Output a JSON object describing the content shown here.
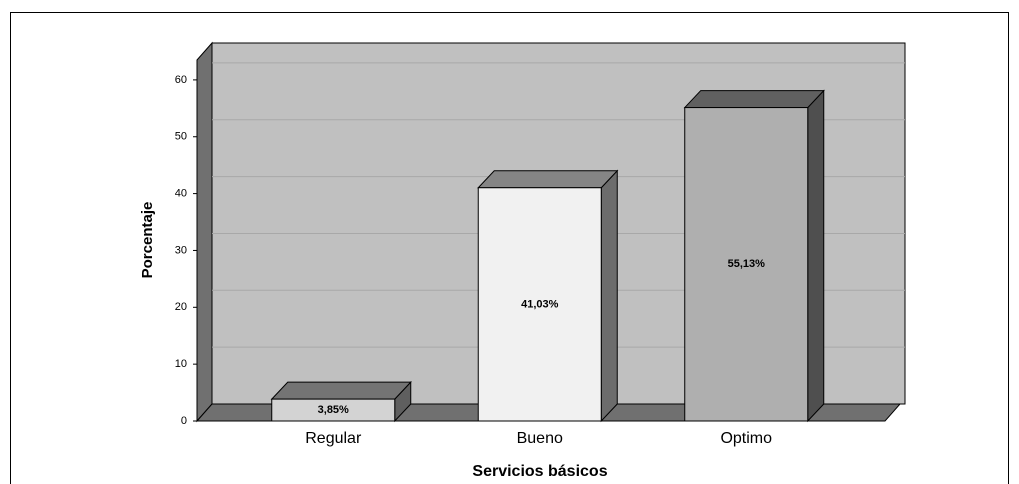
{
  "chart_data": {
    "type": "bar3d",
    "categories": [
      "Regular",
      "Bueno",
      "Optimo"
    ],
    "values": [
      3.85,
      41.03,
      55.13
    ],
    "value_labels": [
      "3,85%",
      "41,03%",
      "55,13%"
    ],
    "colors": [
      "#d3d3d3",
      "#f1f1f1",
      "#afafaf"
    ],
    "ylabel": "Porcentaje",
    "xlabel": "Servicios básicos",
    "ylim": [
      0,
      63.5
    ],
    "yticks": [
      0,
      10,
      20,
      30,
      40,
      50,
      60
    ],
    "grid": true
  }
}
